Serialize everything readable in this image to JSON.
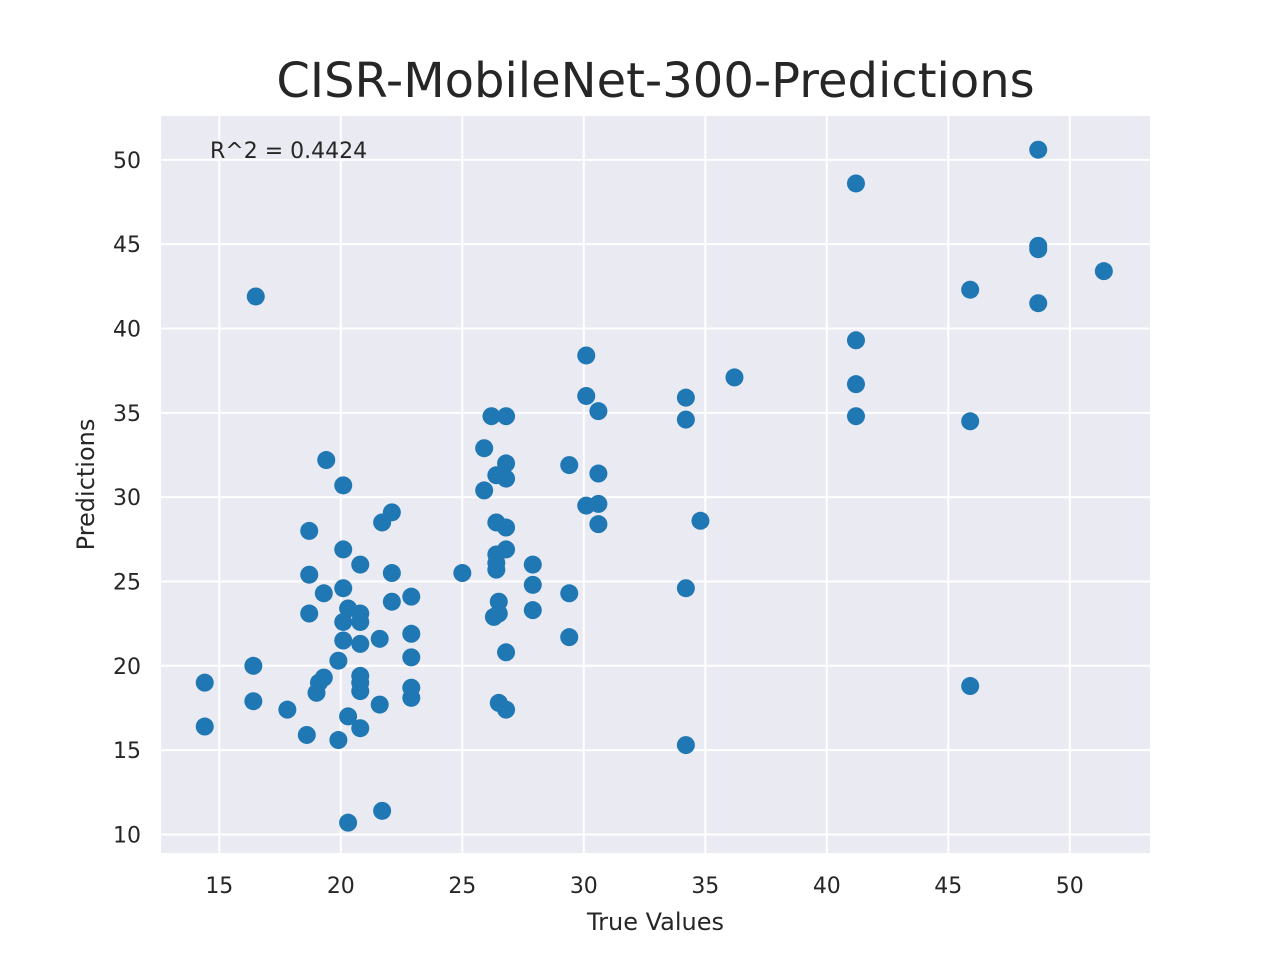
{
  "chart_data": {
    "type": "scatter",
    "title": "CISR-MobileNet-300-Predictions",
    "xlabel": "True Values",
    "ylabel": "Predictions",
    "annotation": "R^2 = 0.4424",
    "xlim": [
      12.6,
      53.3
    ],
    "ylim": [
      8.9,
      52.6
    ],
    "xticks": [
      15,
      20,
      25,
      30,
      35,
      40,
      45,
      50
    ],
    "yticks": [
      10,
      15,
      20,
      25,
      30,
      35,
      40,
      45,
      50
    ],
    "grid": true,
    "background": "#eaeaf2",
    "grid_color": "#ffffff",
    "marker_color": "#1f77b4",
    "points": [
      [
        14.4,
        19.0
      ],
      [
        14.4,
        16.4
      ],
      [
        16.4,
        20.0
      ],
      [
        16.4,
        17.9
      ],
      [
        16.5,
        41.9
      ],
      [
        17.8,
        17.4
      ],
      [
        18.6,
        15.9
      ],
      [
        18.7,
        28.0
      ],
      [
        18.7,
        25.4
      ],
      [
        18.7,
        23.1
      ],
      [
        19.0,
        18.4
      ],
      [
        19.1,
        19.0
      ],
      [
        19.3,
        24.3
      ],
      [
        19.3,
        19.3
      ],
      [
        19.4,
        32.2
      ],
      [
        19.9,
        15.6
      ],
      [
        19.9,
        20.3
      ],
      [
        20.1,
        30.7
      ],
      [
        20.1,
        26.9
      ],
      [
        20.1,
        24.6
      ],
      [
        20.1,
        22.6
      ],
      [
        20.1,
        21.5
      ],
      [
        20.3,
        23.4
      ],
      [
        20.3,
        17.0
      ],
      [
        20.3,
        10.7
      ],
      [
        20.8,
        26.0
      ],
      [
        20.8,
        23.1
      ],
      [
        20.8,
        22.6
      ],
      [
        20.8,
        21.3
      ],
      [
        20.8,
        19.4
      ],
      [
        20.8,
        19.0
      ],
      [
        20.8,
        18.5
      ],
      [
        20.8,
        16.3
      ],
      [
        21.6,
        21.6
      ],
      [
        21.6,
        17.7
      ],
      [
        21.7,
        28.5
      ],
      [
        21.7,
        11.4
      ],
      [
        22.1,
        29.1
      ],
      [
        22.1,
        25.5
      ],
      [
        22.1,
        23.8
      ],
      [
        22.9,
        24.1
      ],
      [
        22.9,
        21.9
      ],
      [
        22.9,
        20.5
      ],
      [
        22.9,
        18.7
      ],
      [
        22.9,
        18.1
      ],
      [
        25.0,
        25.5
      ],
      [
        25.9,
        32.9
      ],
      [
        25.9,
        30.4
      ],
      [
        26.2,
        34.8
      ],
      [
        26.3,
        22.9
      ],
      [
        26.4,
        31.3
      ],
      [
        26.4,
        28.5
      ],
      [
        26.4,
        26.6
      ],
      [
        26.4,
        26.1
      ],
      [
        26.4,
        25.7
      ],
      [
        26.5,
        23.8
      ],
      [
        26.5,
        23.1
      ],
      [
        26.5,
        17.8
      ],
      [
        26.8,
        34.8
      ],
      [
        26.8,
        32.0
      ],
      [
        26.8,
        31.1
      ],
      [
        26.8,
        28.2
      ],
      [
        26.8,
        26.9
      ],
      [
        26.8,
        20.8
      ],
      [
        26.8,
        17.4
      ],
      [
        27.9,
        26.0
      ],
      [
        27.9,
        24.8
      ],
      [
        27.9,
        23.3
      ],
      [
        29.4,
        31.9
      ],
      [
        29.4,
        24.3
      ],
      [
        29.4,
        21.7
      ],
      [
        30.1,
        38.4
      ],
      [
        30.1,
        36.0
      ],
      [
        30.1,
        29.5
      ],
      [
        30.6,
        35.1
      ],
      [
        30.6,
        31.4
      ],
      [
        30.6,
        29.6
      ],
      [
        30.6,
        28.4
      ],
      [
        34.2,
        35.9
      ],
      [
        34.2,
        34.6
      ],
      [
        34.2,
        24.6
      ],
      [
        34.2,
        15.3
      ],
      [
        34.8,
        28.6
      ],
      [
        36.2,
        37.1
      ],
      [
        41.2,
        48.6
      ],
      [
        41.2,
        39.3
      ],
      [
        41.2,
        36.7
      ],
      [
        41.2,
        34.8
      ],
      [
        45.9,
        42.3
      ],
      [
        45.9,
        34.5
      ],
      [
        45.9,
        18.8
      ],
      [
        48.7,
        50.6
      ],
      [
        48.7,
        44.9
      ],
      [
        48.7,
        44.7
      ],
      [
        48.7,
        41.5
      ],
      [
        51.4,
        43.4
      ]
    ]
  }
}
